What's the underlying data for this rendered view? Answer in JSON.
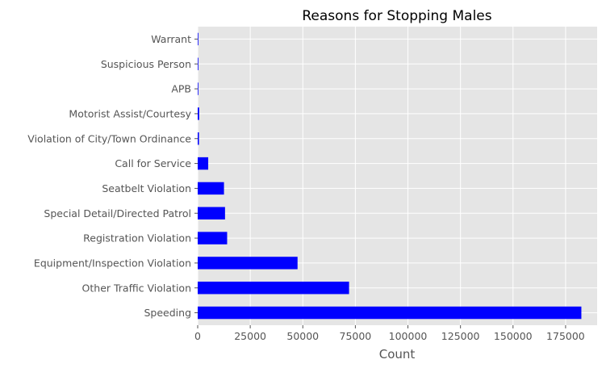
{
  "chart_data": {
    "type": "bar",
    "orientation": "horizontal",
    "title": "Reasons for Stopping Males",
    "xlabel": "Count",
    "ylabel": "",
    "categories": [
      "Speeding",
      "Other Traffic Violation",
      "Equipment/Inspection Violation",
      "Registration Violation",
      "Special Detail/Directed Patrol",
      "Seatbelt Violation",
      "Call for Service",
      "Violation of City/Town Ordinance",
      "Motorist Assist/Courtesy",
      "APB",
      "Suspicious Person",
      "Warrant"
    ],
    "values": [
      182500,
      72000,
      47500,
      14000,
      13000,
      12500,
      5000,
      600,
      700,
      80,
      60,
      40
    ],
    "xlim": [
      0,
      190000
    ],
    "xticks": [
      0,
      25000,
      50000,
      75000,
      100000,
      125000,
      150000,
      175000
    ],
    "grid": true,
    "colors": {
      "bar": "#0000ff",
      "background": "#e5e5e5",
      "grid": "#ffffff",
      "text": "#555555",
      "title": "#000000"
    }
  }
}
